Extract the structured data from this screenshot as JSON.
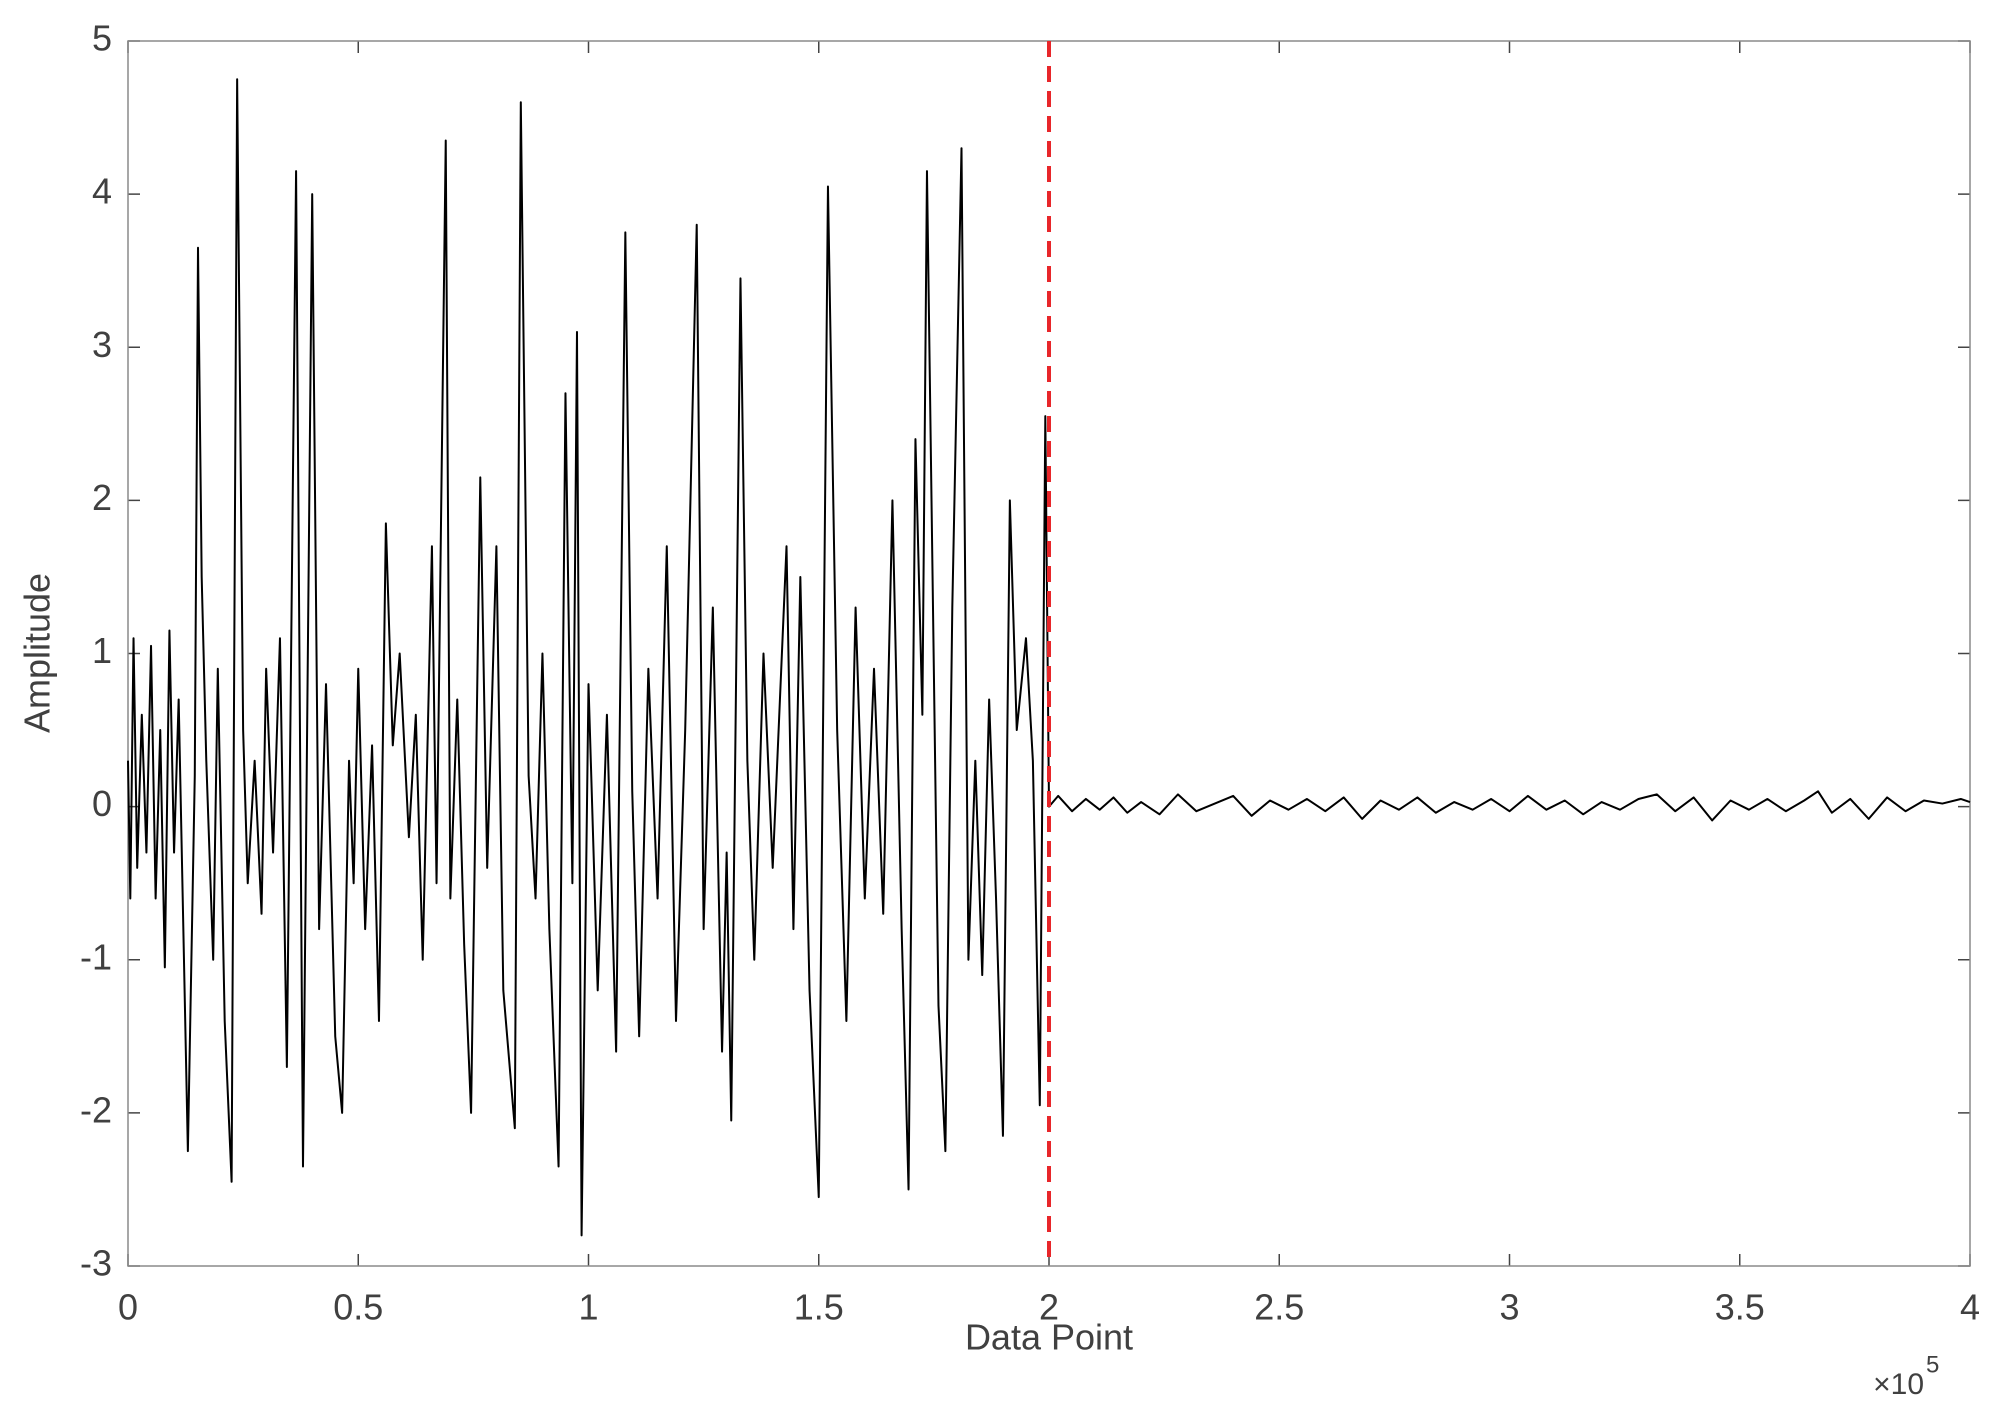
{
  "chart_data": {
    "type": "line",
    "xlabel": "Data Point",
    "ylabel": "Amplitude",
    "x_multiplier": "×10",
    "x_exponent": "5",
    "xlim": [
      0,
      4
    ],
    "xticks": [
      0,
      0.5,
      1,
      1.5,
      2,
      2.5,
      3,
      3.5,
      4
    ],
    "ylim": [
      -3,
      5
    ],
    "yticks": [
      -3,
      -2,
      -1,
      0,
      1,
      2,
      3,
      4,
      5
    ],
    "vline": {
      "x": 2,
      "color": "#e8262a",
      "dashed": true
    },
    "x": [
      0,
      0.005,
      0.012,
      0.02,
      0.03,
      0.04,
      0.05,
      0.06,
      0.07,
      0.08,
      0.09,
      0.1,
      0.11,
      0.13,
      0.145,
      0.152,
      0.16,
      0.17,
      0.185,
      0.195,
      0.21,
      0.225,
      0.237,
      0.25,
      0.26,
      0.275,
      0.29,
      0.3,
      0.315,
      0.33,
      0.345,
      0.365,
      0.38,
      0.4,
      0.415,
      0.43,
      0.45,
      0.465,
      0.48,
      0.49,
      0.5,
      0.515,
      0.53,
      0.545,
      0.56,
      0.575,
      0.59,
      0.61,
      0.625,
      0.64,
      0.66,
      0.67,
      0.69,
      0.7,
      0.715,
      0.73,
      0.745,
      0.765,
      0.78,
      0.8,
      0.815,
      0.84,
      0.853,
      0.87,
      0.885,
      0.9,
      0.915,
      0.935,
      0.95,
      0.965,
      0.975,
      0.985,
      1.0,
      1.02,
      1.04,
      1.06,
      1.08,
      1.095,
      1.11,
      1.13,
      1.15,
      1.17,
      1.19,
      1.21,
      1.235,
      1.25,
      1.27,
      1.29,
      1.3,
      1.31,
      1.33,
      1.345,
      1.36,
      1.38,
      1.4,
      1.43,
      1.445,
      1.46,
      1.48,
      1.5,
      1.52,
      1.54,
      1.56,
      1.58,
      1.6,
      1.62,
      1.64,
      1.66,
      1.68,
      1.695,
      1.71,
      1.725,
      1.735,
      1.76,
      1.775,
      1.79,
      1.81,
      1.825,
      1.84,
      1.855,
      1.87,
      1.885,
      1.9,
      1.915,
      1.93,
      1.95,
      1.965,
      1.98,
      1.992,
      2.0,
      2.02,
      2.05,
      2.08,
      2.11,
      2.14,
      2.17,
      2.2,
      2.24,
      2.28,
      2.32,
      2.36,
      2.4,
      2.44,
      2.48,
      2.52,
      2.56,
      2.6,
      2.64,
      2.68,
      2.72,
      2.76,
      2.8,
      2.84,
      2.88,
      2.92,
      2.96,
      3.0,
      3.04,
      3.08,
      3.12,
      3.16,
      3.2,
      3.24,
      3.28,
      3.32,
      3.36,
      3.4,
      3.44,
      3.48,
      3.52,
      3.56,
      3.6,
      3.64,
      3.67,
      3.7,
      3.74,
      3.78,
      3.82,
      3.86,
      3.9,
      3.94,
      3.98,
      4.0
    ],
    "series": [
      {
        "color": "#000000",
        "values": [
          0.3,
          -0.6,
          1.1,
          -0.4,
          0.6,
          -0.3,
          1.05,
          -0.6,
          0.5,
          -1.05,
          1.15,
          -0.3,
          0.7,
          -2.25,
          0.2,
          3.65,
          1.5,
          0.3,
          -1.0,
          0.9,
          -1.4,
          -2.45,
          4.75,
          0.5,
          -0.5,
          0.3,
          -0.7,
          0.9,
          -0.3,
          1.1,
          -1.7,
          4.15,
          -2.35,
          4.0,
          -0.8,
          0.8,
          -1.5,
          -2.0,
          0.3,
          -0.5,
          0.9,
          -0.8,
          0.4,
          -1.4,
          1.85,
          0.4,
          1.0,
          -0.2,
          0.6,
          -1.0,
          1.7,
          -0.5,
          4.35,
          -0.6,
          0.7,
          -0.9,
          -2.0,
          2.15,
          -0.4,
          1.7,
          -1.2,
          -2.1,
          4.6,
          0.2,
          -0.6,
          1.0,
          -0.8,
          -2.35,
          2.7,
          -0.5,
          3.1,
          -2.8,
          0.8,
          -1.2,
          0.6,
          -1.6,
          3.75,
          0.1,
          -1.5,
          0.9,
          -0.6,
          1.7,
          -1.4,
          0.5,
          3.8,
          -0.8,
          1.3,
          -1.6,
          -0.3,
          -2.05,
          3.45,
          0.3,
          -1.0,
          1.0,
          -0.4,
          1.7,
          -0.8,
          1.5,
          -1.2,
          -2.55,
          4.05,
          0.5,
          -1.4,
          1.3,
          -0.6,
          0.9,
          -0.7,
          2.0,
          -0.8,
          -2.5,
          2.4,
          0.6,
          4.15,
          -1.3,
          -2.25,
          1.3,
          4.3,
          -1.0,
          0.3,
          -1.1,
          0.7,
          -0.6,
          -2.15,
          2.0,
          0.5,
          1.1,
          0.3,
          -1.95,
          2.55,
          0.0,
          0.07,
          -0.03,
          0.05,
          -0.02,
          0.06,
          -0.04,
          0.03,
          -0.05,
          0.08,
          -0.03,
          0.02,
          0.07,
          -0.06,
          0.04,
          -0.02,
          0.05,
          -0.03,
          0.06,
          -0.08,
          0.04,
          -0.02,
          0.06,
          -0.04,
          0.03,
          -0.02,
          0.05,
          -0.03,
          0.07,
          -0.02,
          0.04,
          -0.05,
          0.03,
          -0.02,
          0.05,
          0.08,
          -0.03,
          0.06,
          -0.09,
          0.04,
          -0.02,
          0.05,
          -0.03,
          0.04,
          0.1,
          -0.04,
          0.05,
          -0.08,
          0.06,
          -0.03,
          0.04,
          0.02,
          0.05,
          0.03
        ]
      }
    ]
  }
}
